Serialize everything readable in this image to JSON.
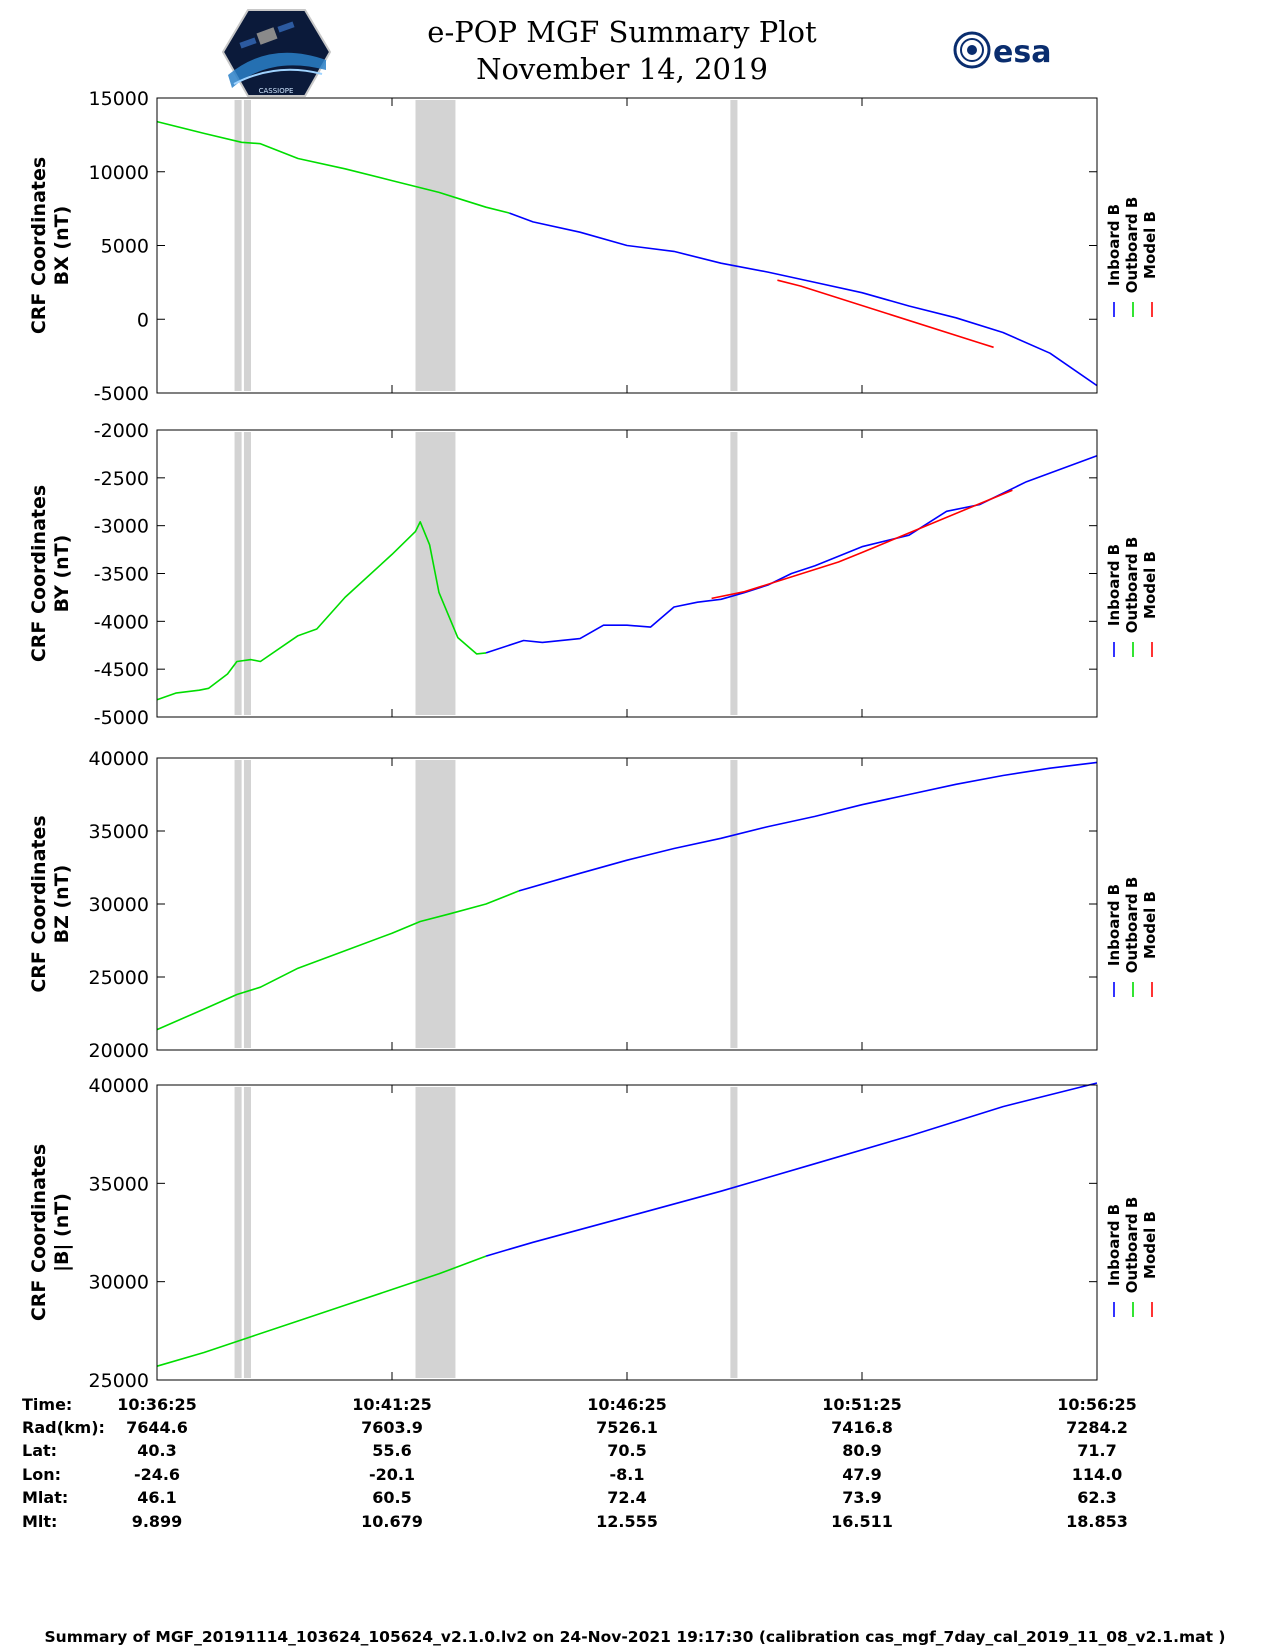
{
  "header": {
    "title": "e-POP MGF Summary Plot",
    "date": "November 14, 2019",
    "esa_logo_text": "esa",
    "mission_logo_text": "CASSIOPE"
  },
  "colors": {
    "inboard": "#0000ff",
    "outboard": "#00dd00",
    "model": "#ff0000",
    "gap": "#d3d3d3"
  },
  "legend": {
    "labels": [
      "Inboard B",
      "Outboard B",
      "Model B"
    ]
  },
  "chart_data": [
    {
      "type": "line",
      "title": "",
      "ylabel_line1": "CRF Coordinates",
      "ylabel_line2": "BX (nT)",
      "ylim": [
        -5000,
        15000
      ],
      "yticks": [
        -5000,
        0,
        5000,
        10000,
        15000
      ],
      "grid": false,
      "x_minutes_range": [
        0,
        20
      ],
      "gaps_minutes": [
        [
          1.65,
          1.8
        ],
        [
          1.85,
          2.0
        ],
        [
          5.5,
          6.35
        ],
        [
          12.2,
          12.35
        ]
      ],
      "outboard": {
        "x": [
          0,
          1,
          1.8,
          2.2,
          3,
          4,
          5,
          6,
          6.5,
          7,
          7.5
        ],
        "y": [
          13400,
          12600,
          12000,
          11900,
          10900,
          10200,
          9400,
          8600,
          8100,
          7600,
          7200
        ]
      },
      "inboard": {
        "x": [
          7.5,
          8,
          9,
          10,
          11,
          12,
          13,
          14,
          15,
          16,
          17,
          18,
          19,
          20
        ],
        "y": [
          7200,
          6600,
          5900,
          5000,
          4600,
          3800,
          3200,
          2500,
          1800,
          900,
          100,
          -900,
          -2300,
          -4500
        ]
      },
      "model": {
        "x": [
          13.2,
          13.7,
          17.5,
          17.8
        ],
        "y": [
          2650,
          2250,
          -1600,
          -1900
        ]
      }
    },
    {
      "type": "line",
      "title": "",
      "ylabel_line1": "CRF Coordinates",
      "ylabel_line2": "BY (nT)",
      "ylim": [
        -5000,
        -2000
      ],
      "yticks": [
        -5000,
        -4500,
        -4000,
        -3500,
        -3000,
        -2500,
        -2000
      ],
      "grid": false,
      "x_minutes_range": [
        0,
        20
      ],
      "gaps_minutes": [
        [
          1.65,
          1.8
        ],
        [
          1.85,
          2.0
        ],
        [
          5.5,
          6.35
        ],
        [
          12.2,
          12.35
        ]
      ],
      "outboard": {
        "x": [
          0,
          0.4,
          0.9,
          1.1,
          1.5,
          1.7,
          2.0,
          2.2,
          3.0,
          3.4,
          4.0,
          5.0,
          5.5,
          5.6,
          5.8,
          6.0,
          6.4,
          6.8,
          7.0
        ],
        "y": [
          -4820,
          -4750,
          -4720,
          -4700,
          -4550,
          -4420,
          -4400,
          -4420,
          -4150,
          -4080,
          -3750,
          -3300,
          -3060,
          -2960,
          -3200,
          -3700,
          -4170,
          -4340,
          -4330
        ]
      },
      "inboard": {
        "x": [
          7.0,
          7.8,
          8.2,
          9.0,
          9.5,
          10.0,
          10.5,
          11.0,
          11.5,
          12.0,
          12.5,
          13.0,
          13.5,
          14.0,
          15.0,
          16.0,
          16.8,
          17.5,
          18.5,
          20.0
        ],
        "y": [
          -4330,
          -4200,
          -4220,
          -4180,
          -4040,
          -4040,
          -4060,
          -3850,
          -3800,
          -3770,
          -3700,
          -3620,
          -3500,
          -3420,
          -3220,
          -3100,
          -2850,
          -2780,
          -2540,
          -2270
        ]
      },
      "model": {
        "x": [
          11.8,
          12.5,
          14.5,
          15.0,
          17.5,
          18.2
        ],
        "y": [
          -3760,
          -3690,
          -3380,
          -3280,
          -2770,
          -2630
        ]
      }
    },
    {
      "type": "line",
      "title": "",
      "ylabel_line1": "CRF Coordinates",
      "ylabel_line2": "BZ (nT)",
      "ylim": [
        20000,
        40000
      ],
      "yticks": [
        20000,
        25000,
        30000,
        35000,
        40000
      ],
      "grid": false,
      "x_minutes_range": [
        0,
        20
      ],
      "gaps_minutes": [
        [
          1.65,
          1.8
        ],
        [
          1.85,
          2.0
        ],
        [
          5.5,
          6.35
        ],
        [
          12.2,
          12.35
        ]
      ],
      "outboard": {
        "x": [
          0,
          1,
          1.7,
          2.2,
          3,
          4,
          5,
          5.6,
          6.2,
          7,
          7.7
        ],
        "y": [
          21400,
          22800,
          23800,
          24300,
          25600,
          26800,
          28000,
          28800,
          29300,
          30000,
          30900
        ]
      },
      "inboard": {
        "x": [
          7.7,
          9,
          10,
          11,
          12,
          13,
          14,
          15,
          16,
          17,
          18,
          19,
          20
        ],
        "y": [
          30900,
          32100,
          33000,
          33800,
          34500,
          35300,
          36000,
          36800,
          37500,
          38200,
          38800,
          39300,
          39700
        ]
      },
      "model": {
        "x": [],
        "y": []
      }
    },
    {
      "type": "line",
      "title": "",
      "ylabel_line1": "CRF Coordinates",
      "ylabel_line2": "|B| (nT)",
      "ylim": [
        25000,
        40000
      ],
      "yticks": [
        25000,
        30000,
        35000,
        40000
      ],
      "grid": false,
      "x_minutes_range": [
        0,
        20
      ],
      "gaps_minutes": [
        [
          1.65,
          1.8
        ],
        [
          1.85,
          2.0
        ],
        [
          5.5,
          6.35
        ],
        [
          12.2,
          12.35
        ]
      ],
      "outboard": {
        "x": [
          0,
          1,
          2,
          3,
          4,
          5,
          6,
          7
        ],
        "y": [
          25700,
          26400,
          27200,
          28000,
          28800,
          29600,
          30400,
          31300
        ]
      },
      "inboard": {
        "x": [
          7,
          8,
          10,
          12,
          14,
          16,
          18,
          20
        ],
        "y": [
          31300,
          32000,
          33300,
          34600,
          36000,
          37400,
          38900,
          40100
        ]
      },
      "model": {
        "x": [],
        "y": []
      }
    }
  ],
  "ephemeris": {
    "row_labels": [
      "Time:",
      "Rad(km):",
      "Lat:",
      "Lon:",
      "Mlat:",
      "Mlt:"
    ],
    "columns": [
      [
        "10:36:25",
        "7644.6",
        "40.3",
        "-24.6",
        "46.1",
        "9.899"
      ],
      [
        "10:41:25",
        "7603.9",
        "55.6",
        "-20.1",
        "60.5",
        "10.679"
      ],
      [
        "10:46:25",
        "7526.1",
        "70.5",
        "-8.1",
        "72.4",
        "12.555"
      ],
      [
        "10:51:25",
        "7416.8",
        "80.9",
        "47.9",
        "73.9",
        "16.511"
      ],
      [
        "10:56:25",
        "7284.2",
        "71.7",
        "114.0",
        "62.3",
        "18.853"
      ]
    ]
  },
  "footer": {
    "text": "Summary of MGF_20191114_103624_105624_v2.1.0.lv2 on 24-Nov-2021 19:17:30 (calibration cas_mgf_7day_cal_2019_11_08_v2.1.mat )"
  }
}
